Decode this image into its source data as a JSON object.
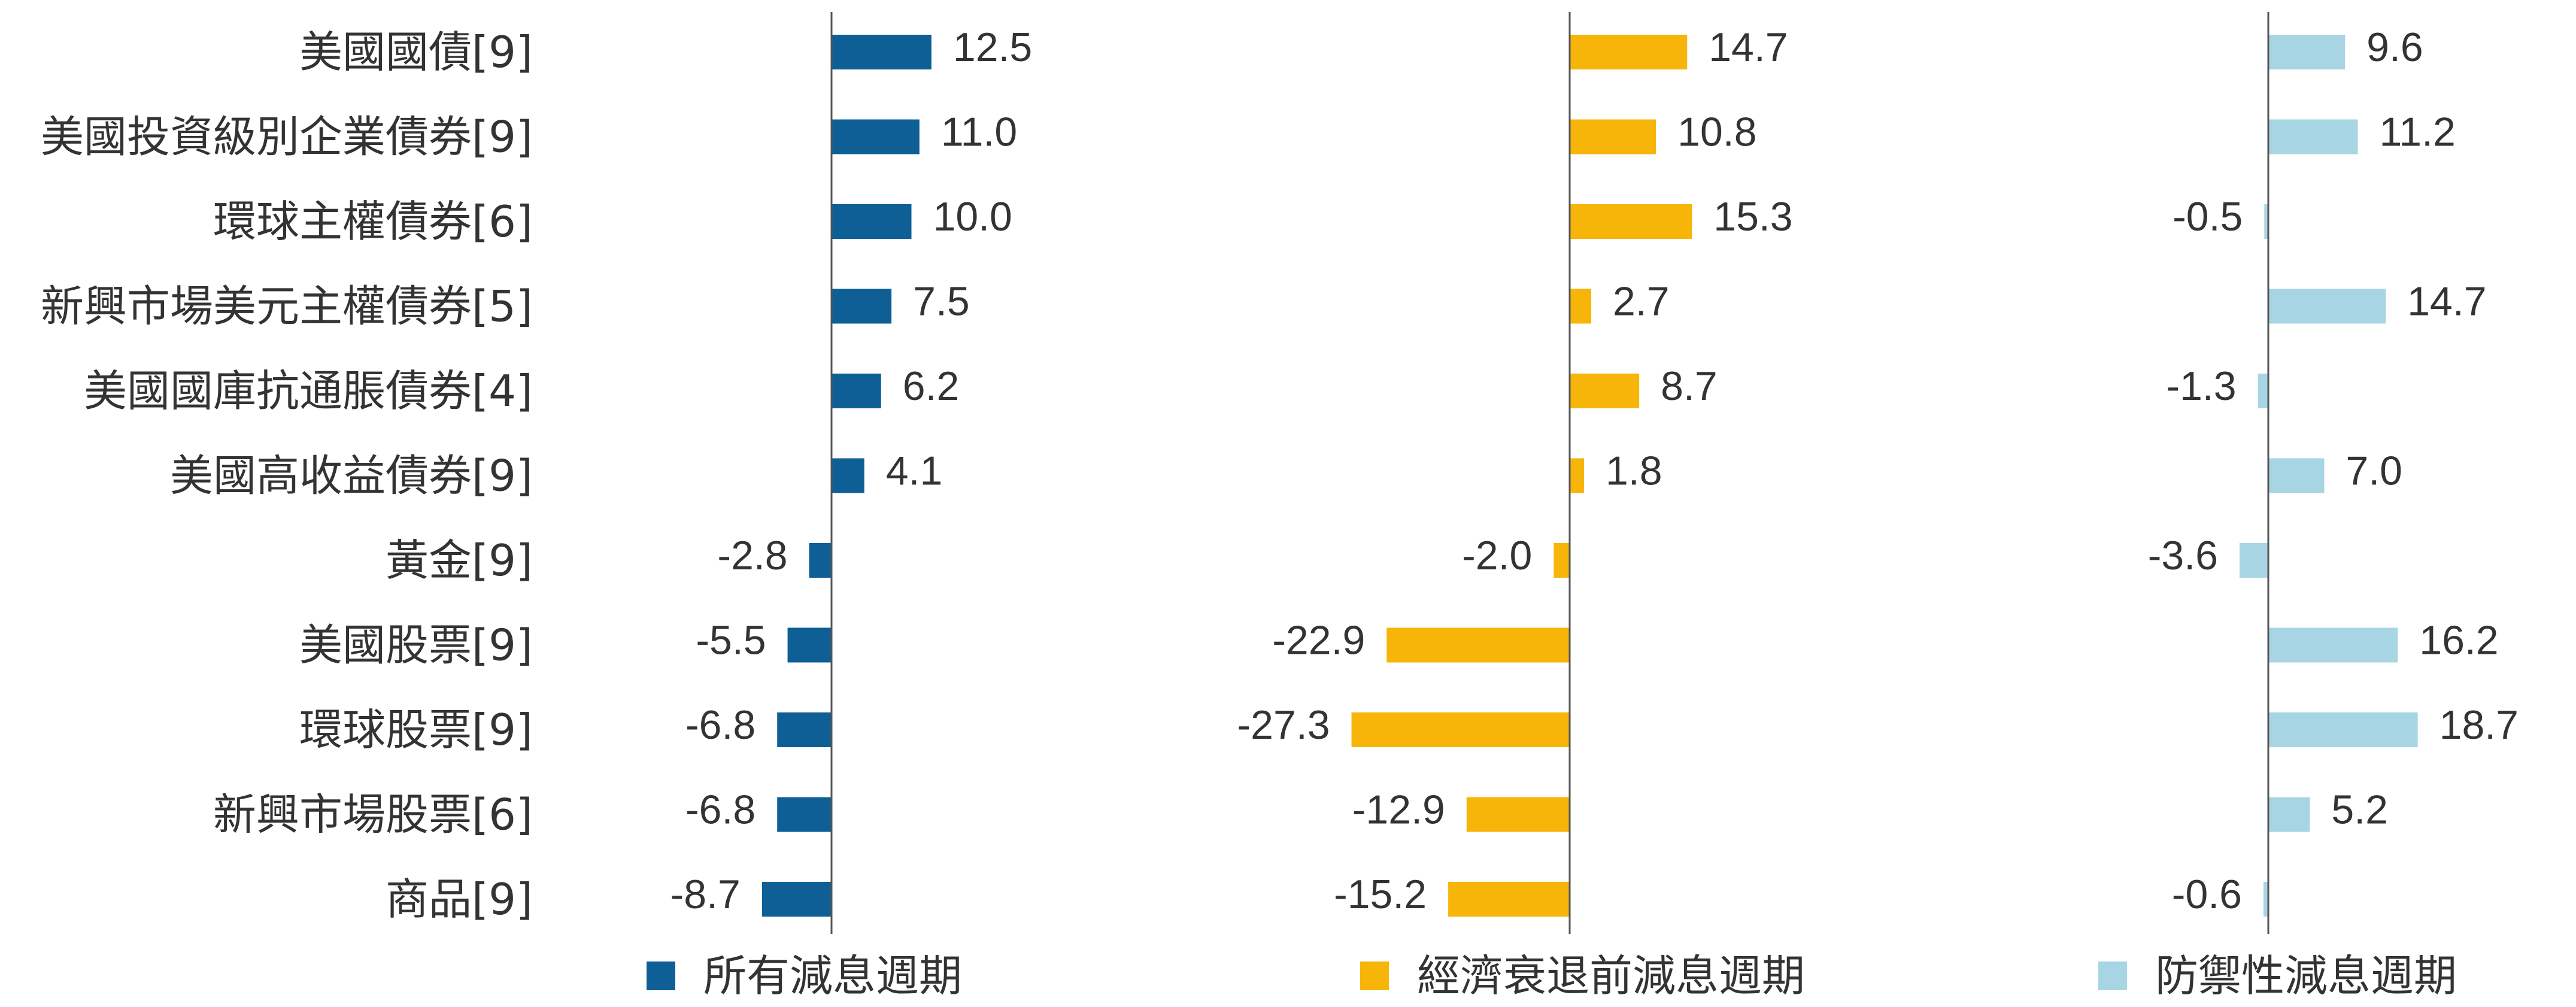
{
  "chart_data": {
    "type": "bar",
    "orientation": "horizontal",
    "categories": [
      "美國國債[9]",
      "美國投資級別企業債券[9]",
      "環球主權債券[6]",
      "新興市場美元主權債券[5]",
      "美國國庫抗通脹債券[4]",
      "美國高收益債券[9]",
      "黃金[9]",
      "美國股票[9]",
      "環球股票[9]",
      "新興市場股票[6]",
      "商品[9]"
    ],
    "series": [
      {
        "name": "所有減息週期",
        "color": "#0d5f96",
        "values": [
          12.5,
          11.0,
          10.0,
          7.5,
          6.2,
          4.1,
          -2.8,
          -5.5,
          -6.8,
          -6.8,
          -8.7
        ],
        "labels": [
          "12.5",
          "11.0",
          "10.0",
          "7.5",
          "6.2",
          "4.1",
          "-2.8",
          "-5.5",
          "-6.8",
          "-6.8",
          "-8.7"
        ]
      },
      {
        "name": "經濟衰退前減息週期",
        "color": "#f7b50a",
        "values": [
          14.7,
          10.8,
          15.3,
          2.7,
          8.7,
          1.8,
          -2.0,
          -22.9,
          -27.3,
          -12.9,
          -15.2
        ],
        "labels": [
          "14.7",
          "10.8",
          "15.3",
          "2.7",
          "8.7",
          "1.8",
          "-2.0",
          "-22.9",
          "-27.3",
          "-12.9",
          "-15.2"
        ]
      },
      {
        "name": "防禦性減息週期",
        "color": "#a8d5e3",
        "values": [
          9.6,
          11.2,
          -0.5,
          14.7,
          -1.3,
          7.0,
          -3.6,
          16.2,
          18.7,
          5.2,
          -0.6
        ],
        "labels": [
          "9.6",
          "11.2",
          "-0.5",
          "14.7",
          "-1.3",
          "7.0",
          "-3.6",
          "16.2",
          "18.7",
          "5.2",
          "-0.6"
        ]
      }
    ],
    "legend_position": "bottom",
    "grid": false
  }
}
